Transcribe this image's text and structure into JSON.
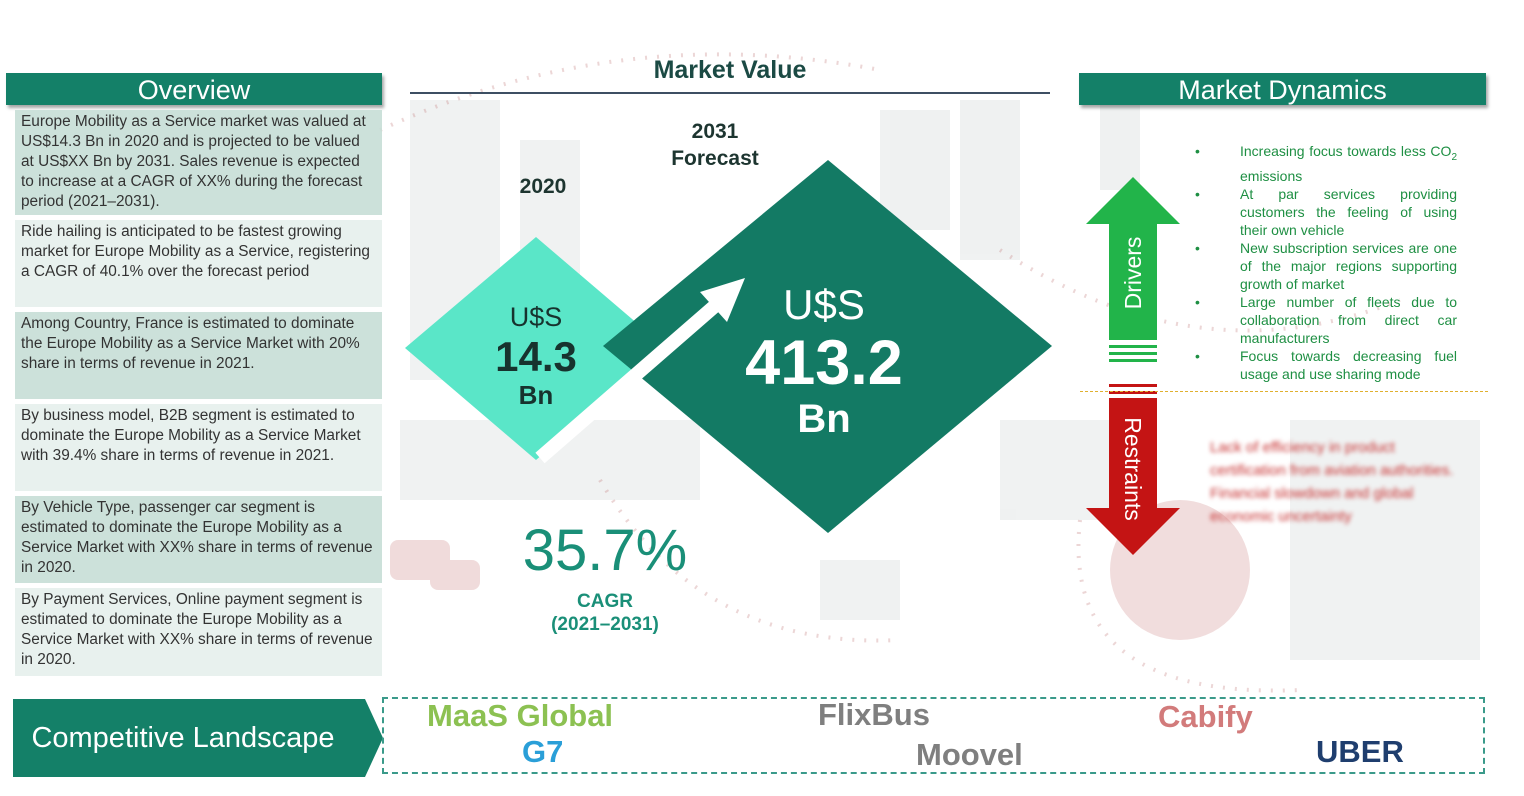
{
  "overview": {
    "title": "Overview",
    "items": [
      "Europe Mobility as a Service market was valued at US$14.3 Bn in 2020 and is projected to be valued at US$XX Bn by 2031. Sales revenue is expected to increase at a CAGR of XX% during the forecast period (2021–2031).",
      "Ride hailing is anticipated to be fastest growing market for Europe Mobility as a Service, registering a CAGR of 40.1% over the forecast period",
      "Among Country,  France is estimated to dominate the Europe Mobility as a Service Market with 20% share in terms of revenue in 2021.",
      "By business model, B2B segment is estimated to dominate the Europe Mobility as a Service Market with 39.4% share in terms of revenue in 2021.",
      "By Vehicle Type,  passenger car segment is estimated to dominate the Europe Mobility as a Service Market with XX% share in terms of revenue in 2020.",
      "By Payment Services, Online payment segment is estimated to dominate the Europe Mobility as a Service Market with XX% share in terms of revenue in 2020."
    ]
  },
  "market_value": {
    "title": "Market Value",
    "year_2020": "2020",
    "year_2031_line1": "2031",
    "year_2031_line2": "Forecast",
    "v2020": {
      "currency": "U$S",
      "value": "14.3",
      "unit": "Bn"
    },
    "v2031": {
      "currency": "U$S",
      "value": "413.2",
      "unit": "Bn"
    },
    "cagr_value": "35.7%",
    "cagr_label": "CAGR",
    "cagr_period": "(2021–2031)"
  },
  "dynamics": {
    "title": "Market Dynamics",
    "drivers_label": "Drivers",
    "restraints_label": "Restraints",
    "drivers": [
      {
        "pre": "Increasing focus towards less CO",
        "sub": "2",
        "post": " emissions"
      },
      {
        "pre": "At par services providing customers the feeling of using their own vehicle",
        "sub": "",
        "post": ""
      },
      {
        "pre": "New subscription services are one of the major regions supporting growth of market",
        "sub": "",
        "post": ""
      },
      {
        "pre": "Large number of fleets due to collaboration from direct car manufacturers",
        "sub": "",
        "post": ""
      },
      {
        "pre": "Focus towards decreasing fuel usage and use sharing mode",
        "sub": "",
        "post": ""
      }
    ],
    "restraints": [
      "Lack of efficiency in product certification from aviation authorities.",
      "Financial slowdown and global economic uncertainty"
    ]
  },
  "competitive": {
    "label": "Competitive Landscape",
    "companies": [
      {
        "name": "MaaS Global",
        "color": "#8cc152"
      },
      {
        "name": "FlixBus",
        "color": "#7f7f7f"
      },
      {
        "name": "Cabify",
        "color": "#d27b7b"
      },
      {
        "name": "G7",
        "color": "#2a9fd8"
      },
      {
        "name": "Moovel",
        "color": "#7f7f7f"
      },
      {
        "name": "UBER",
        "color": "#1f3e6e"
      }
    ]
  },
  "colors": {
    "header_green": "#148068",
    "light_diamond": "#5ae6c8",
    "dark_diamond": "#137a64",
    "driver_arrow": "#22b44a",
    "restraint_arrow": "#c41414"
  }
}
